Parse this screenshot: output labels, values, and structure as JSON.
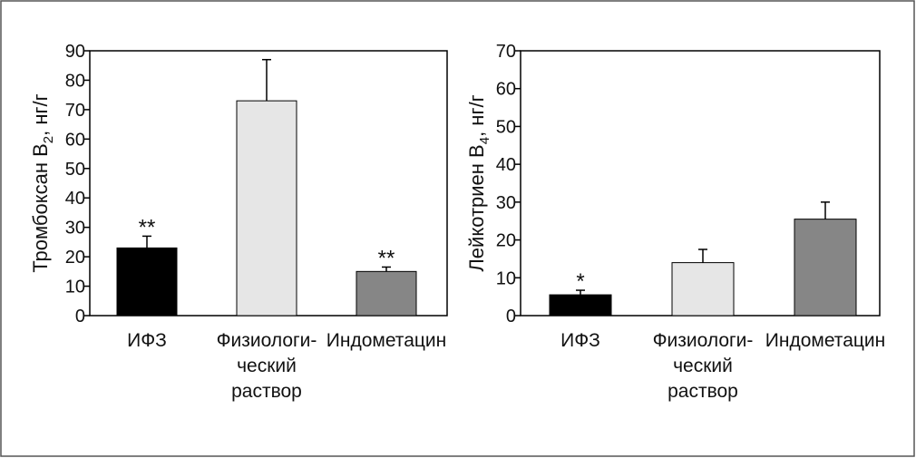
{
  "chart_data": [
    {
      "type": "bar",
      "ylabel": {
        "main": "Тромбоксан В",
        "sub": "2",
        "tail": ", нг/г"
      },
      "ylim": [
        0,
        90
      ],
      "yticks": [
        0,
        10,
        20,
        30,
        40,
        50,
        60,
        70,
        80,
        90
      ],
      "categories": [
        [
          "ИФЗ"
        ],
        [
          "Физиологи-",
          "ческий",
          "раствор"
        ],
        [
          "Индометацин"
        ]
      ],
      "values": [
        23,
        73,
        15
      ],
      "errors": [
        4,
        14,
        1.5
      ],
      "colors": [
        "#000000",
        "#e6e6e6",
        "#868686"
      ],
      "annotations": [
        "**",
        "",
        "**"
      ],
      "grid": false,
      "legend": "none"
    },
    {
      "type": "bar",
      "ylabel": {
        "main": "Лейкотриен В",
        "sub": "4",
        "tail": ", нг/г"
      },
      "ylim": [
        0,
        70
      ],
      "yticks": [
        0,
        10,
        20,
        30,
        40,
        50,
        60,
        70
      ],
      "categories": [
        [
          "ИФЗ"
        ],
        [
          "Физиологи-",
          "ческий",
          "раствор"
        ],
        [
          "Индометацин"
        ]
      ],
      "values": [
        5.5,
        14,
        25.5
      ],
      "errors": [
        1.2,
        3.5,
        4.5
      ],
      "colors": [
        "#000000",
        "#e6e6e6",
        "#868686"
      ],
      "annotations": [
        "*",
        "",
        ""
      ],
      "grid": false,
      "legend": "none"
    }
  ]
}
